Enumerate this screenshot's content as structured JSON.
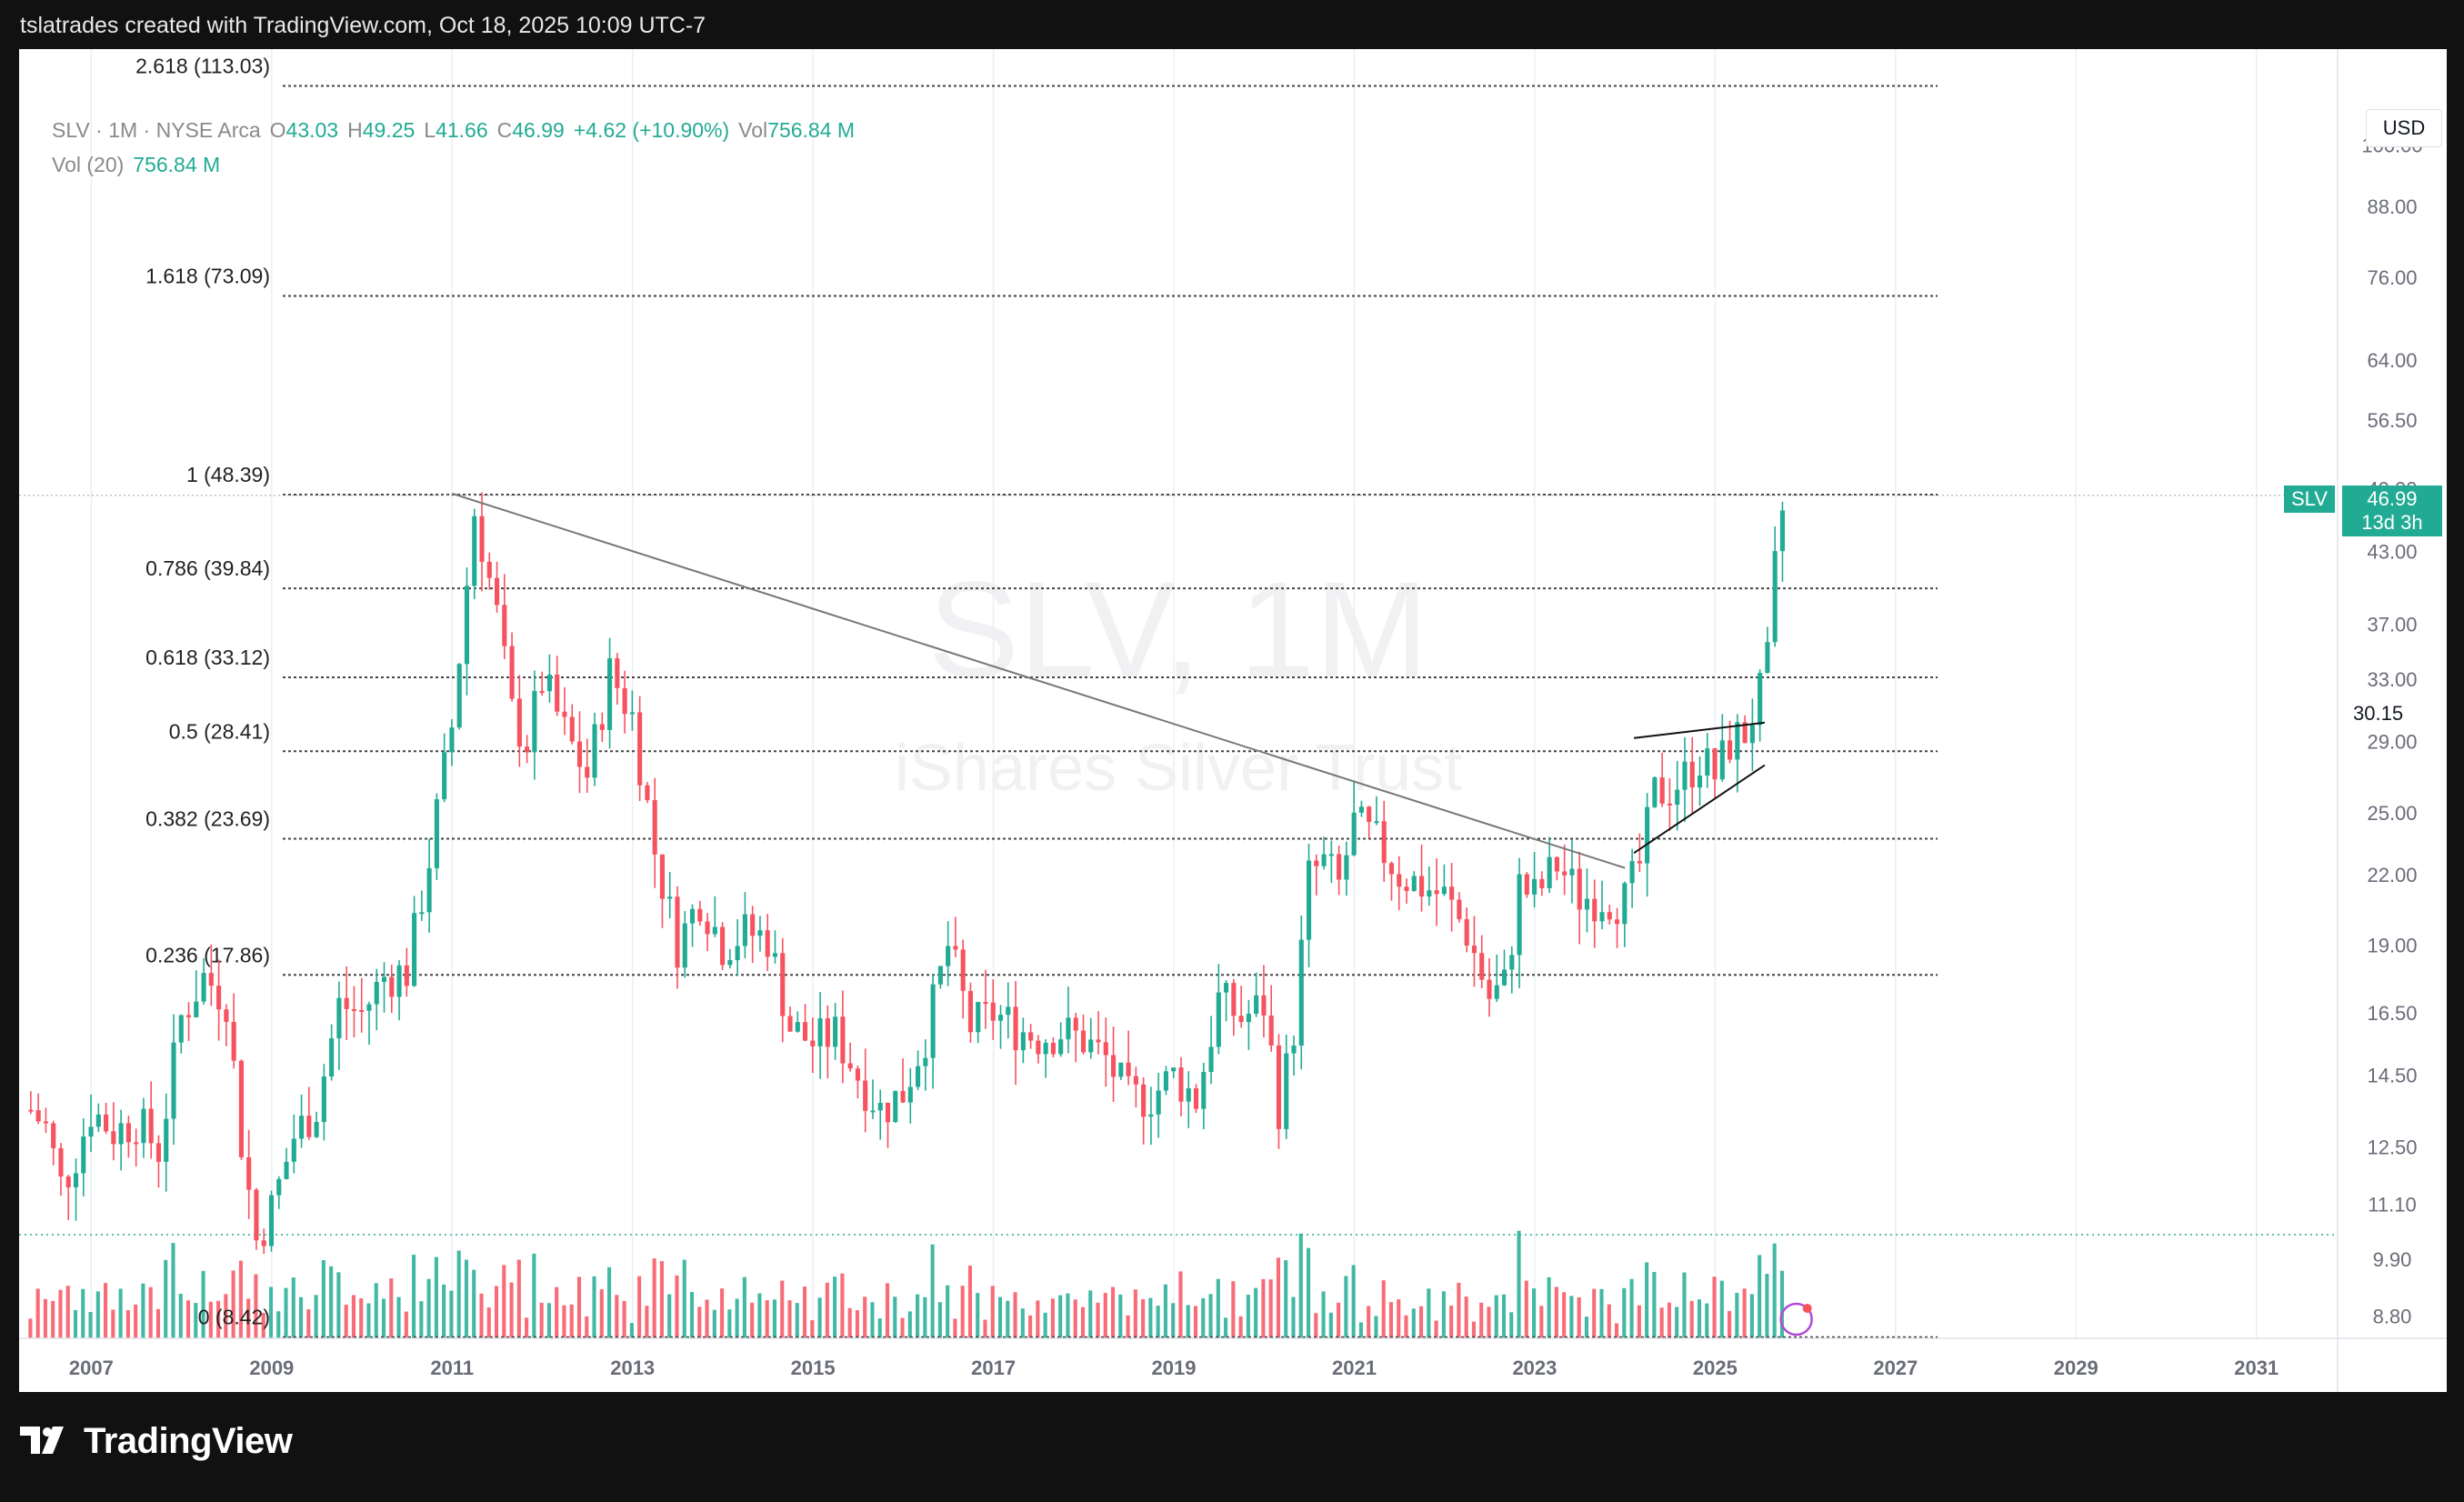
{
  "header": {
    "caption": "tslatrades created with TradingView.com, Oct 18, 2025 10:09 UTC-7"
  },
  "legend": {
    "symbol_line": "SLV · 1M · NYSE Arca",
    "o_label": "O",
    "o_value": "43.03",
    "h_label": "H",
    "h_value": "49.25",
    "l_label": "L",
    "l_value": "41.66",
    "c_label": "C",
    "c_value": "46.99",
    "change": "+4.62 (+10.90%)",
    "vol_label": "Vol",
    "vol_value": "756.84 M",
    "vol20_label": "Vol (20)",
    "vol20_value": "756.84 M"
  },
  "currency": "USD",
  "price_tag": {
    "symbol": "SLV",
    "price": "46.99",
    "countdown": "13d 3h"
  },
  "watermark": {
    "line1": "SLV, 1M",
    "line2": "iShares Silver Trust"
  },
  "annotations": {
    "triangle_top_value": "30.15"
  },
  "branding": {
    "name": "TradingView"
  },
  "colors": {
    "up": "#22ab94",
    "down": "#f7525f",
    "background": "#ffffff",
    "frame": "#111111"
  },
  "chart_data": {
    "type": "candlestick",
    "interval": "1M",
    "y_scale": "log",
    "ylim": [
      8.4,
      122
    ],
    "xlim": [
      2006.2,
      2031.9
    ],
    "x_ticks": [
      "2007",
      "2009",
      "2011",
      "2013",
      "2015",
      "2017",
      "2019",
      "2021",
      "2023",
      "2025",
      "2027",
      "2029",
      "2031"
    ],
    "y_ticks": [
      "100.00",
      "88.00",
      "76.00",
      "64.00",
      "56.50",
      "49.00",
      "43.00",
      "37.00",
      "33.00",
      "29.00",
      "25.00",
      "22.00",
      "19.00",
      "16.50",
      "14.50",
      "12.50",
      "11.10",
      "9.90",
      "8.80"
    ],
    "fib_levels": [
      {
        "label": "0 (8.42)",
        "value": 8.42
      },
      {
        "label": "0.236 (17.86)",
        "value": 17.86
      },
      {
        "label": "0.382 (23.69)",
        "value": 23.69
      },
      {
        "label": "0.5 (28.41)",
        "value": 28.41
      },
      {
        "label": "0.618 (33.12)",
        "value": 33.12
      },
      {
        "label": "0.786 (39.84)",
        "value": 39.84
      },
      {
        "label": "1 (48.39)",
        "value": 48.39
      },
      {
        "label": "1.618 (73.09)",
        "value": 73.09
      },
      {
        "label": "2.618 (113.03)",
        "value": 113.03
      }
    ],
    "trendlines": [
      {
        "name": "downtrend",
        "x": [
          2011.0,
          2024.0
        ],
        "y": [
          48.5,
          22.3
        ]
      },
      {
        "name": "triangle-top",
        "x": [
          2024.1,
          2025.55
        ],
        "y": [
          29.2,
          30.15
        ]
      },
      {
        "name": "triangle-bottom",
        "x": [
          2024.1,
          2025.55
        ],
        "y": [
          23.0,
          27.6
        ]
      }
    ],
    "close_path": [
      [
        2006.33,
        13.5
      ],
      [
        2006.5,
        13.0
      ],
      [
        2006.67,
        11.5
      ],
      [
        2006.83,
        12.3
      ],
      [
        2007.0,
        13.5
      ],
      [
        2007.25,
        12.9
      ],
      [
        2007.5,
        13.2
      ],
      [
        2007.75,
        12.4
      ],
      [
        2008.0,
        16.4
      ],
      [
        2008.25,
        17.8
      ],
      [
        2008.5,
        17.0
      ],
      [
        2008.67,
        12.5
      ],
      [
        2008.83,
        10.3
      ],
      [
        2009.0,
        11.0
      ],
      [
        2009.25,
        12.8
      ],
      [
        2009.5,
        13.6
      ],
      [
        2009.75,
        16.8
      ],
      [
        2010.0,
        16.5
      ],
      [
        2010.25,
        17.8
      ],
      [
        2010.5,
        18.0
      ],
      [
        2010.75,
        22.8
      ],
      [
        2011.0,
        30.0
      ],
      [
        2011.25,
        47.0
      ],
      [
        2011.5,
        37.5
      ],
      [
        2011.67,
        30.5
      ],
      [
        2011.83,
        29.0
      ],
      [
        2012.0,
        33.0
      ],
      [
        2012.25,
        29.5
      ],
      [
        2012.5,
        27.0
      ],
      [
        2012.75,
        33.5
      ],
      [
        2013.0,
        30.5
      ],
      [
        2013.25,
        23.0
      ],
      [
        2013.5,
        19.0
      ],
      [
        2013.75,
        21.0
      ],
      [
        2014.0,
        19.0
      ],
      [
        2014.25,
        19.5
      ],
      [
        2014.5,
        19.3
      ],
      [
        2014.75,
        16.0
      ],
      [
        2015.0,
        15.5
      ],
      [
        2015.25,
        15.8
      ],
      [
        2015.5,
        14.5
      ],
      [
        2015.75,
        13.5
      ],
      [
        2016.0,
        14.0
      ],
      [
        2016.25,
        15.8
      ],
      [
        2016.5,
        19.0
      ],
      [
        2016.75,
        16.0
      ],
      [
        2017.0,
        16.5
      ],
      [
        2017.25,
        16.0
      ],
      [
        2017.5,
        15.7
      ],
      [
        2017.75,
        15.9
      ],
      [
        2018.0,
        15.6
      ],
      [
        2018.25,
        15.0
      ],
      [
        2018.5,
        13.8
      ],
      [
        2018.75,
        13.9
      ],
      [
        2019.0,
        14.5
      ],
      [
        2019.25,
        13.8
      ],
      [
        2019.5,
        17.0
      ],
      [
        2019.75,
        16.3
      ],
      [
        2020.0,
        16.8
      ],
      [
        2020.17,
        13.5
      ],
      [
        2020.33,
        16.0
      ],
      [
        2020.5,
        22.0
      ],
      [
        2020.67,
        22.5
      ],
      [
        2020.83,
        21.5
      ],
      [
        2021.0,
        24.5
      ],
      [
        2021.25,
        23.5
      ],
      [
        2021.5,
        22.0
      ],
      [
        2021.75,
        21.5
      ],
      [
        2022.0,
        21.0
      ],
      [
        2022.25,
        19.5
      ],
      [
        2022.5,
        17.0
      ],
      [
        2022.67,
        17.5
      ],
      [
        2022.83,
        21.5
      ],
      [
        2023.0,
        21.0
      ],
      [
        2023.25,
        22.5
      ],
      [
        2023.5,
        21.0
      ],
      [
        2023.75,
        21.0
      ],
      [
        2024.0,
        20.8
      ],
      [
        2024.17,
        22.5
      ],
      [
        2024.33,
        26.0
      ],
      [
        2024.5,
        26.3
      ],
      [
        2024.67,
        27.0
      ],
      [
        2024.83,
        28.0
      ],
      [
        2025.0,
        27.0
      ],
      [
        2025.17,
        29.0
      ],
      [
        2025.33,
        29.5
      ],
      [
        2025.5,
        32.0
      ],
      [
        2025.58,
        34.0
      ],
      [
        2025.67,
        42.0
      ],
      [
        2025.75,
        46.99
      ]
    ],
    "volume_scale_max": 100
  }
}
